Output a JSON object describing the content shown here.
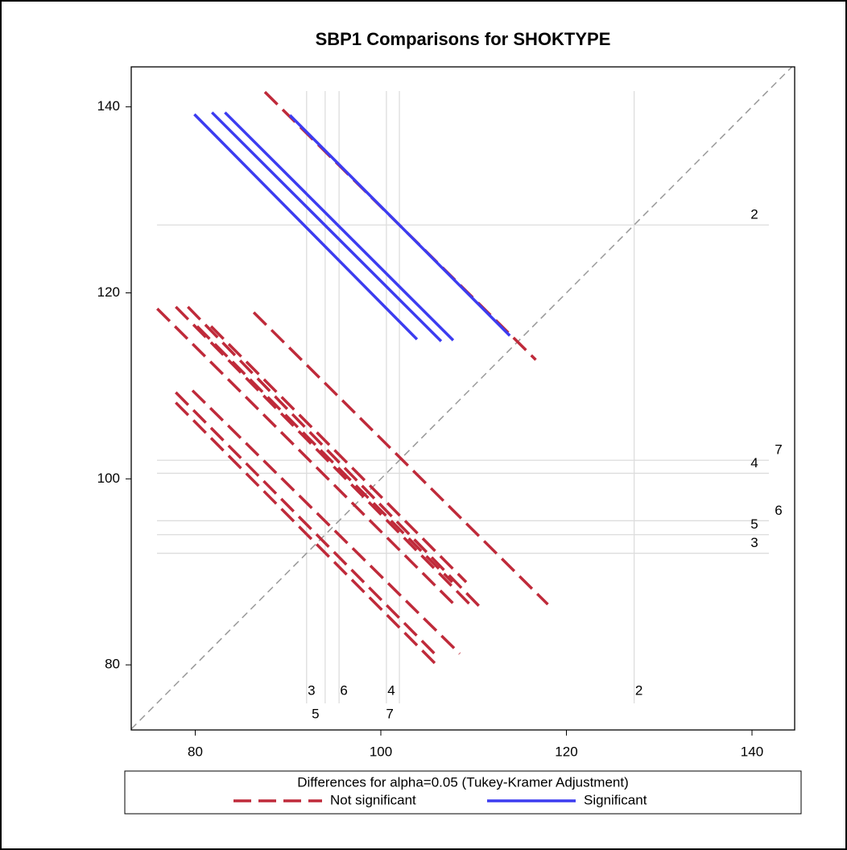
{
  "chart_data": {
    "type": "diffogram",
    "title": "SBP1 Comparisons for SHOKTYPE",
    "xlim": [
      73.1,
      144.6
    ],
    "ylim": [
      73.0,
      144.3
    ],
    "xticks": [
      80,
      100,
      120,
      140
    ],
    "yticks": [
      80,
      100,
      120,
      140
    ],
    "groups": [
      {
        "label": "3",
        "mean": 92.0
      },
      {
        "label": "5",
        "mean": 94.0
      },
      {
        "label": "6",
        "mean": 95.5
      },
      {
        "label": "4",
        "mean": 100.6
      },
      {
        "label": "7",
        "mean": 102.0
      },
      {
        "label": "2",
        "mean": 127.3
      }
    ],
    "legend_title": "Differences for alpha=0.05 (Tukey-Kramer Adjustment)",
    "series": [
      {
        "name": "Not significant",
        "color": "#bf2a3a",
        "dashed": true,
        "segments": [
          {
            "x": [
              87.5,
              116.7
            ],
            "y": [
              141.6,
              112.8
            ]
          },
          {
            "x": [
              75.9,
              108.3
            ],
            "y": [
              118.3,
              86.1
            ]
          },
          {
            "x": [
              77.9,
              109.6
            ],
            "y": [
              118.5,
              86.5
            ]
          },
          {
            "x": [
              79.2,
              111.0
            ],
            "y": [
              118.5,
              85.9
            ]
          },
          {
            "x": [
              86.3,
              118.0
            ],
            "y": [
              117.9,
              86.5
            ]
          },
          {
            "x": [
              80.2,
              107.7
            ],
            "y": [
              116.4,
              88.9
            ]
          },
          {
            "x": [
              81.7,
              109.2
            ],
            "y": [
              116.4,
              88.9
            ]
          },
          {
            "x": [
              77.9,
              105.8
            ],
            "y": [
              109.3,
              81.2
            ]
          },
          {
            "x": [
              79.7,
              108.5
            ],
            "y": [
              109.5,
              81.2
            ]
          },
          {
            "x": [
              77.9,
              106.0
            ],
            "y": [
              108.2,
              80.0
            ]
          }
        ]
      },
      {
        "name": "Significant",
        "color": "#3c3cf0",
        "dashed": false,
        "segments": [
          {
            "x": [
              79.9,
              103.9
            ],
            "y": [
              139.2,
              115.0
            ]
          },
          {
            "x": [
              81.8,
              106.5
            ],
            "y": [
              139.4,
              114.8
            ]
          },
          {
            "x": [
              83.2,
              107.8
            ],
            "y": [
              139.4,
              114.9
            ]
          },
          {
            "x": [
              90.2,
              113.9
            ],
            "y": [
              139.1,
              115.4
            ]
          }
        ]
      }
    ]
  }
}
